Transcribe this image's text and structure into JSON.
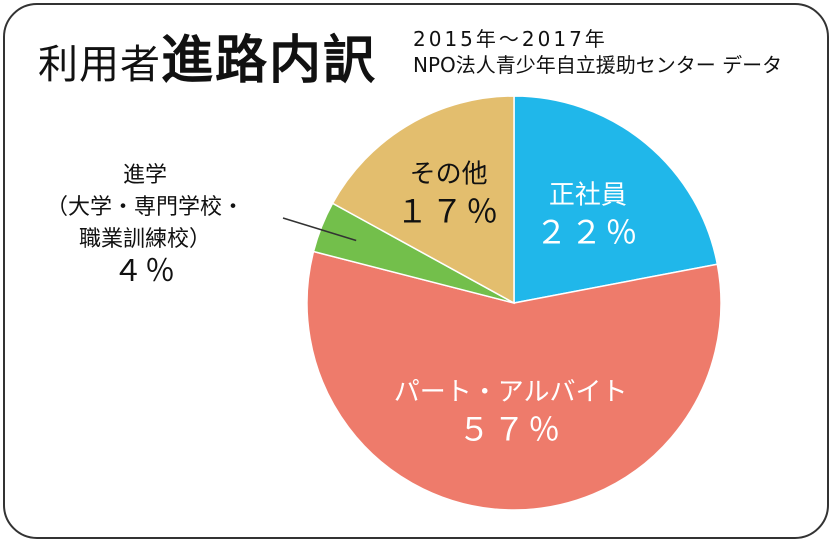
{
  "header": {
    "title_light": "利用者",
    "title_bold": "進路内訳",
    "period": "2015年〜2017年",
    "source": "NPO法人青少年自立援助センター データ"
  },
  "chart_data": {
    "type": "pie",
    "start_angle": "12 o'clock",
    "direction": "clockwise",
    "slices": [
      {
        "label": "正社員",
        "value": 22,
        "value_text": "２２％",
        "color": "#20B7EA",
        "label_color": "#ffffff"
      },
      {
        "label": "パート・アルバイト",
        "value": 57,
        "value_text": "５７％",
        "color": "#EE7B6B",
        "label_color": "#ffffff"
      },
      {
        "label": "進学（大学・専門学校・職業訓練校）",
        "value": 4,
        "value_text": "４％",
        "color": "#73BF4B",
        "label_color": "#111111"
      },
      {
        "label": "その他",
        "value": 17,
        "value_text": "１７％",
        "color": "#E3BE6E",
        "label_color": "#111111"
      }
    ]
  },
  "external_label": {
    "lines": [
      "進学",
      "（大学・専門学校・",
      "職業訓練校）"
    ],
    "value_text": "４％"
  }
}
